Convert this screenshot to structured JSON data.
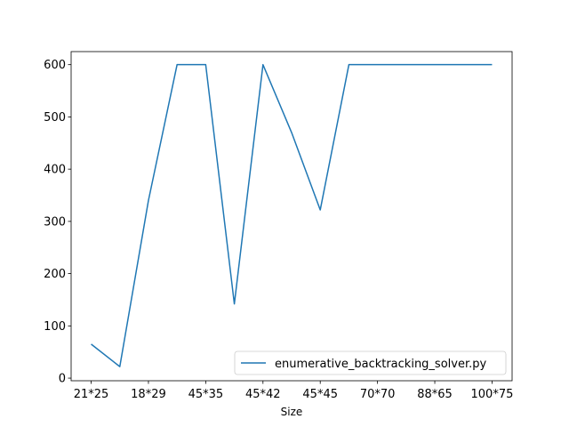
{
  "chart_data": {
    "type": "line",
    "title": "",
    "xlabel": "Size",
    "ylabel": "",
    "x_ticks": [
      "21*25",
      "18*29",
      "45*35",
      "45*42",
      "45*45",
      "70*70",
      "88*65",
      "100*75"
    ],
    "y_ticks": [
      0,
      100,
      200,
      300,
      400,
      500,
      600
    ],
    "ylim": [
      -5,
      625
    ],
    "grid": false,
    "legend_position": "lower-right",
    "series": [
      {
        "name": "enumerative_backtracking_solver.py",
        "color": "#1f77b4",
        "x": [
          0,
          1,
          2,
          3,
          4,
          5,
          6,
          7,
          8,
          9,
          10,
          11,
          12,
          13,
          14
        ],
        "values": [
          65,
          22,
          340,
          600,
          600,
          142,
          600,
          470,
          322,
          600,
          600,
          600,
          600,
          600,
          600
        ]
      }
    ],
    "x_tick_positions": [
      0,
      2,
      4,
      6,
      8,
      10,
      12,
      14
    ]
  }
}
